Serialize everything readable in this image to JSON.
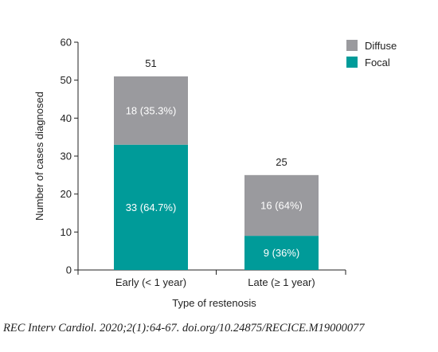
{
  "chart_data": {
    "type": "bar",
    "stacked": true,
    "categories": [
      "Early (< 1 year)",
      "Late (≥ 1 year)"
    ],
    "series": [
      {
        "name": "Focal",
        "color": "#009b99",
        "values": [
          33,
          9
        ],
        "labels": [
          "33 (64.7%)",
          "9 (36%)"
        ]
      },
      {
        "name": "Diffuse",
        "color": "#9a9a9e",
        "values": [
          18,
          16
        ],
        "labels": [
          "18 (35.3%)",
          "16 (64%)"
        ]
      }
    ],
    "totals": [
      51,
      25
    ],
    "xlabel": "Type of restenosis",
    "ylabel": "Number of cases diagnosed",
    "ylim": [
      0,
      60
    ],
    "yticks": [
      0,
      10,
      20,
      30,
      40,
      50,
      60
    ],
    "grid": false,
    "legend": {
      "position": "top-right",
      "order": [
        "Diffuse",
        "Focal"
      ]
    }
  },
  "citation": "REC Interv Cardiol. 2020;2(1):64-67. doi.org/10.24875/RECICE.M19000077"
}
